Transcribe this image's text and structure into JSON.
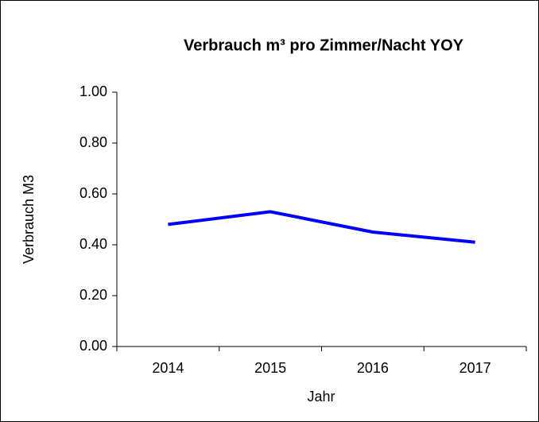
{
  "chart_data": {
    "type": "line",
    "title": "Verbrauch m³ pro Zimmer/Nacht YOY",
    "x_label": "Jahr",
    "y_label": "Verbrauch M3",
    "categories": [
      "2014",
      "2015",
      "2016",
      "2017"
    ],
    "values": [
      0.48,
      0.53,
      0.45,
      0.41
    ],
    "color": "#0000ff",
    "ylim": [
      0,
      1
    ],
    "yticks": [
      {
        "value": 0,
        "label": "0.00"
      },
      {
        "value": 0.2,
        "label": "0.20"
      },
      {
        "value": 0.4,
        "label": "0.40"
      },
      {
        "value": 0.6,
        "label": "0.60"
      },
      {
        "value": 0.8,
        "label": "0.80"
      },
      {
        "value": 1,
        "label": "1.00"
      }
    ],
    "grid": false
  }
}
